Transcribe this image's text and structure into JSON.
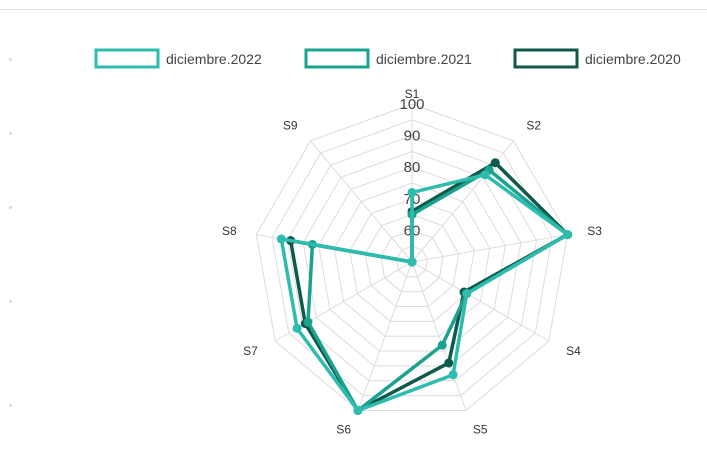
{
  "chart_data": {
    "type": "radar",
    "axes": [
      "S1",
      "S2",
      "S3",
      "S4",
      "S5",
      "S6",
      "S7",
      "S8",
      "S9"
    ],
    "r_ticks": [
      "60",
      "70",
      "80",
      "90",
      "100"
    ],
    "r_range": [
      50,
      100
    ],
    "grid": true,
    "legend_position": "top",
    "series": [
      {
        "name": "diciembre.2022",
        "color": "#2ebcae",
        "values": [
          72,
          86,
          100,
          70,
          88,
          100,
          92,
          92,
          50
        ]
      },
      {
        "name": "diciembre.2021",
        "color": "#1aa28f",
        "values": [
          65,
          88,
          100,
          70,
          78,
          100,
          88,
          82,
          50
        ]
      },
      {
        "name": "diciembre.2020",
        "color": "#0e5a4a",
        "values": [
          66,
          91,
          100,
          69,
          84,
          100,
          89,
          89,
          50
        ]
      }
    ]
  }
}
